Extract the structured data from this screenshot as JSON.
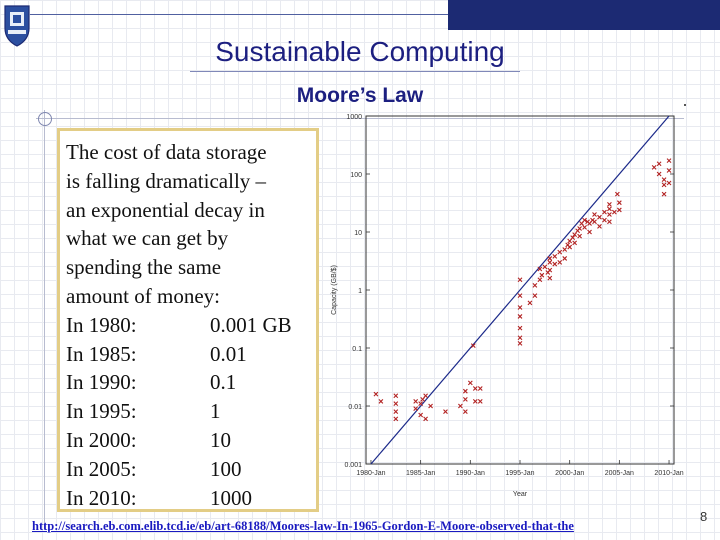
{
  "slide": {
    "title": "Sustainable Computing",
    "subtitle": "Moore’s Law",
    "intro_lines": [
      "The cost of data storage",
      "is falling dramatically –",
      "an exponential decay in",
      "what we can get by",
      "spending the same",
      "amount of money:"
    ],
    "table": [
      {
        "year": "In 1980:",
        "value": "0.001 GB"
      },
      {
        "year": "In 1985:",
        "value": "0.01"
      },
      {
        "year": "In 1990:",
        "value": "0.1"
      },
      {
        "year": "In 1995:",
        "value": "1"
      },
      {
        "year": "In 2000:",
        "value": "10"
      },
      {
        "year": "In 2005:",
        "value": "100"
      },
      {
        "year": "In 2010:",
        "value": "1000"
      }
    ],
    "url": "http://search.eb.com.elib.tcd.ie/eb/art-68188/Moores-law-In-1965-Gordon-E-Moore-observed-that-the",
    "page_number": "8"
  },
  "colors": {
    "title": "#1c1f80",
    "top_bar": "#1c2a73",
    "box_border": "#e3cd86",
    "marker": "#b22222",
    "trend_line": "#1c2a8a"
  },
  "chart_data": {
    "type": "scatter",
    "xlabel": "Year",
    "ylabel": "Capacity (GB/$)",
    "x_ticks": [
      "1980-Jan",
      "1985-Jan",
      "1990-Jan",
      "1995-Jan",
      "2000-Jan",
      "2005-Jan",
      "2010-Jan"
    ],
    "y_ticks": [
      "0.001",
      "0.01",
      "0.1",
      "1",
      "10",
      "100",
      "1000"
    ],
    "y_scale": "log",
    "xlim": [
      1979.5,
      2010.5
    ],
    "ylim": [
      0.001,
      1000
    ],
    "trend_line": [
      [
        1980,
        0.001
      ],
      [
        2010,
        1000
      ]
    ],
    "points": [
      [
        1980.5,
        0.016
      ],
      [
        1981,
        0.012
      ],
      [
        1982.5,
        0.011
      ],
      [
        1982.5,
        0.015
      ],
      [
        1982.5,
        0.008
      ],
      [
        1982.5,
        0.006
      ],
      [
        1984.5,
        0.012
      ],
      [
        1984.5,
        0.009
      ],
      [
        1985,
        0.011
      ],
      [
        1985,
        0.007
      ],
      [
        1985.2,
        0.013
      ],
      [
        1985.5,
        0.006
      ],
      [
        1985.5,
        0.015
      ],
      [
        1986,
        0.01
      ],
      [
        1987.5,
        0.008
      ],
      [
        1989,
        0.01
      ],
      [
        1989.5,
        0.018
      ],
      [
        1989.5,
        0.013
      ],
      [
        1989.5,
        0.008
      ],
      [
        1990,
        0.025
      ],
      [
        1990.3,
        0.11
      ],
      [
        1990.5,
        0.02
      ],
      [
        1990.5,
        0.012
      ],
      [
        1991,
        0.02
      ],
      [
        1991,
        0.012
      ],
      [
        1995,
        0.8
      ],
      [
        1995,
        0.5
      ],
      [
        1995,
        0.35
      ],
      [
        1995,
        0.22
      ],
      [
        1995,
        0.15
      ],
      [
        1995,
        0.12
      ],
      [
        1995,
        1.5
      ],
      [
        1996,
        0.6
      ],
      [
        1996.5,
        0.8
      ],
      [
        1996.5,
        1.2
      ],
      [
        1997,
        1.5
      ],
      [
        1997,
        2.3
      ],
      [
        1997.2,
        1.8
      ],
      [
        1997.5,
        2.5
      ],
      [
        1997.8,
        2.0
      ],
      [
        1998,
        3.0
      ],
      [
        1998,
        2.2
      ],
      [
        1998,
        1.6
      ],
      [
        1998,
        3.5
      ],
      [
        1998.5,
        2.8
      ],
      [
        1998.5,
        3.8
      ],
      [
        1999,
        4.5
      ],
      [
        1999,
        3.0
      ],
      [
        1999.5,
        3.5
      ],
      [
        1999.5,
        5.0
      ],
      [
        1999.8,
        6.0
      ],
      [
        2000,
        7.0
      ],
      [
        2000,
        5.5
      ],
      [
        2000.3,
        8.0
      ],
      [
        2000.5,
        9.0
      ],
      [
        2000.5,
        6.5
      ],
      [
        2000.8,
        10.5
      ],
      [
        2001,
        11.5
      ],
      [
        2001,
        8.5
      ],
      [
        2001.2,
        14.0
      ],
      [
        2001.5,
        16.0
      ],
      [
        2001.5,
        12.0
      ],
      [
        2001.8,
        15.0
      ],
      [
        2002,
        14.0
      ],
      [
        2002,
        10.0
      ],
      [
        2002.3,
        16.0
      ],
      [
        2002.5,
        20.0
      ],
      [
        2002.5,
        15.0
      ],
      [
        2003,
        18.0
      ],
      [
        2003,
        12.5
      ],
      [
        2003.5,
        22.0
      ],
      [
        2003.5,
        16.0
      ],
      [
        2004,
        20.0
      ],
      [
        2004,
        25.0
      ],
      [
        2004,
        30.0
      ],
      [
        2004,
        15.0
      ],
      [
        2004.5,
        22.0
      ],
      [
        2004.8,
        45.0
      ],
      [
        2005,
        32.0
      ],
      [
        2005,
        24.0
      ],
      [
        2008.5,
        130.0
      ],
      [
        2009,
        150.0
      ],
      [
        2009,
        100.0
      ],
      [
        2009.5,
        80.0
      ],
      [
        2009.5,
        65.0
      ],
      [
        2009.5,
        45.0
      ],
      [
        2010,
        170.0
      ],
      [
        2010,
        115.0
      ],
      [
        2010,
        70.0
      ]
    ]
  }
}
